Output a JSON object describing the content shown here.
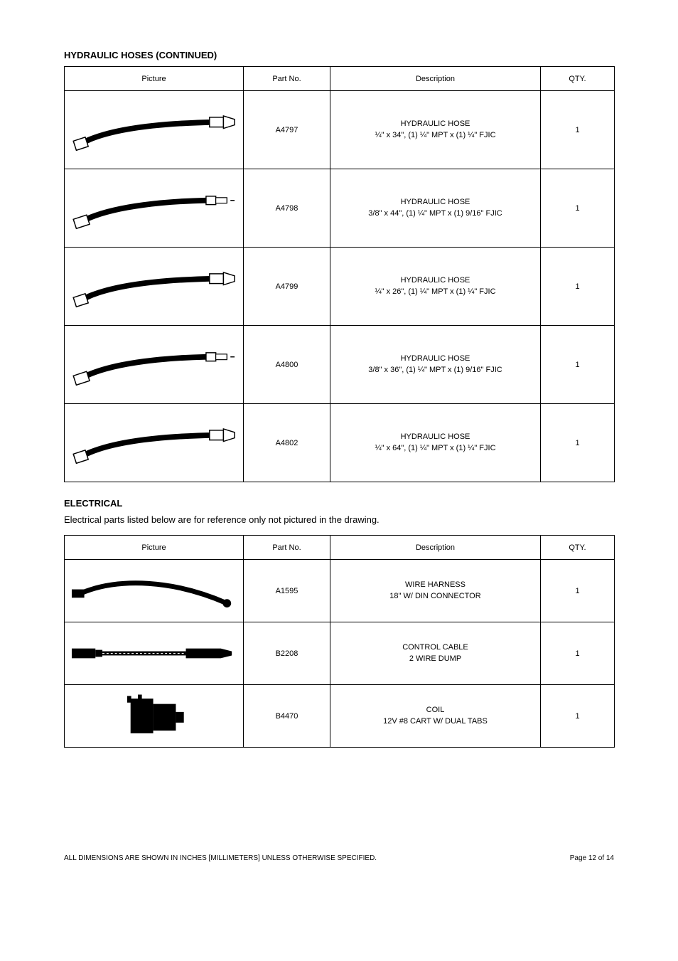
{
  "section1": {
    "title": "HYDRAULIC HOSES (CONTINUED)",
    "columns": {
      "picture": "Picture",
      "part_no": "Part No.",
      "description": "Description",
      "qty": "QTY."
    },
    "rows": [
      {
        "part_no": "A4797",
        "desc_main": "HYDRAULIC HOSE",
        "desc_detail": "¼\" x 34\", (1) ¼\" MPT x (1) ¼\" FJIC",
        "qty": "1",
        "svg": "hose_a"
      },
      {
        "part_no": "A4798",
        "desc_main": "HYDRAULIC HOSE",
        "desc_detail": "3/8\" x 44\", (1) ¼\" MPT x (1) 9/16\" FJIC",
        "qty": "1",
        "svg": "hose_b"
      },
      {
        "part_no": "A4799",
        "desc_main": "HYDRAULIC HOSE",
        "desc_detail": "¼\" x 26\", (1) ¼\" MPT x (1) ¼\" FJIC",
        "qty": "1",
        "svg": "hose_a"
      },
      {
        "part_no": "A4800",
        "desc_main": "HYDRAULIC HOSE",
        "desc_detail": "3/8\" x 36\", (1) ¼\" MPT x (1) 9/16\" FJIC",
        "qty": "1",
        "svg": "hose_b"
      },
      {
        "part_no": "A4802",
        "desc_main": "HYDRAULIC HOSE",
        "desc_detail": "¼\" x 64\", (1) ¼\" MPT x (1) ¼\" FJIC",
        "qty": "1",
        "svg": "hose_a"
      }
    ]
  },
  "section2": {
    "title": "ELECTRICAL",
    "subnote": "Electrical parts listed below are for reference only not pictured in the drawing.",
    "columns": {
      "picture": "Picture",
      "part_no": "Part No.",
      "description": "Description",
      "qty": "QTY."
    },
    "rows": [
      {
        "part_no": "A1595",
        "desc_main": "WIRE HARNESS",
        "desc_detail": "18\" W/ DIN CONNECTOR",
        "qty": "1",
        "svg": "harness"
      },
      {
        "part_no": "B2208",
        "desc_main": "CONTROL CABLE",
        "desc_detail": "2 WIRE DUMP",
        "qty": "1",
        "svg": "cable"
      },
      {
        "part_no": "B4470",
        "desc_main": "COIL",
        "desc_detail": "12V #8 CART W/ DUAL TABS",
        "qty": "1",
        "svg": "coil"
      }
    ]
  },
  "footer": {
    "left": "ALL DIMENSIONS ARE SHOWN IN INCHES [MILLIMETERS] UNLESS OTHERWISE SPECIFIED.",
    "right": "Page 12 of 14"
  },
  "svg_defs": {
    "hose_stroke": "#000000",
    "hose_fill": "#000000"
  }
}
